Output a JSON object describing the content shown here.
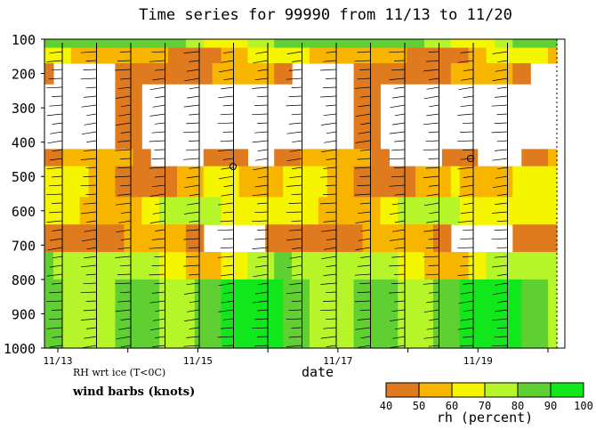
{
  "chart_data": {
    "type": "heatmap",
    "title": "Time series for 99990 from 11/13 to 11/20",
    "xlabel": "date",
    "ylabel": "",
    "x_ticks": [
      "11/13",
      "11/15",
      "11/17",
      "11/19"
    ],
    "y_ticks": [
      100,
      200,
      300,
      400,
      500,
      600,
      700,
      800,
      900,
      1000
    ],
    "ylim": [
      1000,
      100
    ],
    "notes": {
      "rh_note": "RH wrt ice (T<0C)",
      "wind_note": "wind barbs (knots)"
    },
    "colorbar": {
      "label": "rh (percent)",
      "ticks": [
        40,
        50,
        60,
        70,
        80,
        90,
        100
      ],
      "colors": [
        "#e07a1e",
        "#f7b500",
        "#f5f500",
        "#b5f52a",
        "#5fcf32",
        "#10e81c"
      ]
    },
    "rh_bands": [
      {
        "y": [
          100,
          125
        ],
        "dominant": 80
      },
      {
        "y": [
          125,
          170
        ],
        "dominant": 55
      },
      {
        "y": [
          170,
          230
        ],
        "dominant": 45
      },
      {
        "y": [
          230,
          420
        ],
        "dominant": 30
      },
      {
        "y": [
          420,
          470
        ],
        "dominant": 45
      },
      {
        "y": [
          470,
          560
        ],
        "dominant": 55
      },
      {
        "y": [
          560,
          640
        ],
        "dominant": 65
      },
      {
        "y": [
          640,
          720
        ],
        "dominant": 45
      },
      {
        "y": [
          720,
          800
        ],
        "dominant": 70
      },
      {
        "y": [
          800,
          1000
        ],
        "dominant": 85
      }
    ]
  }
}
